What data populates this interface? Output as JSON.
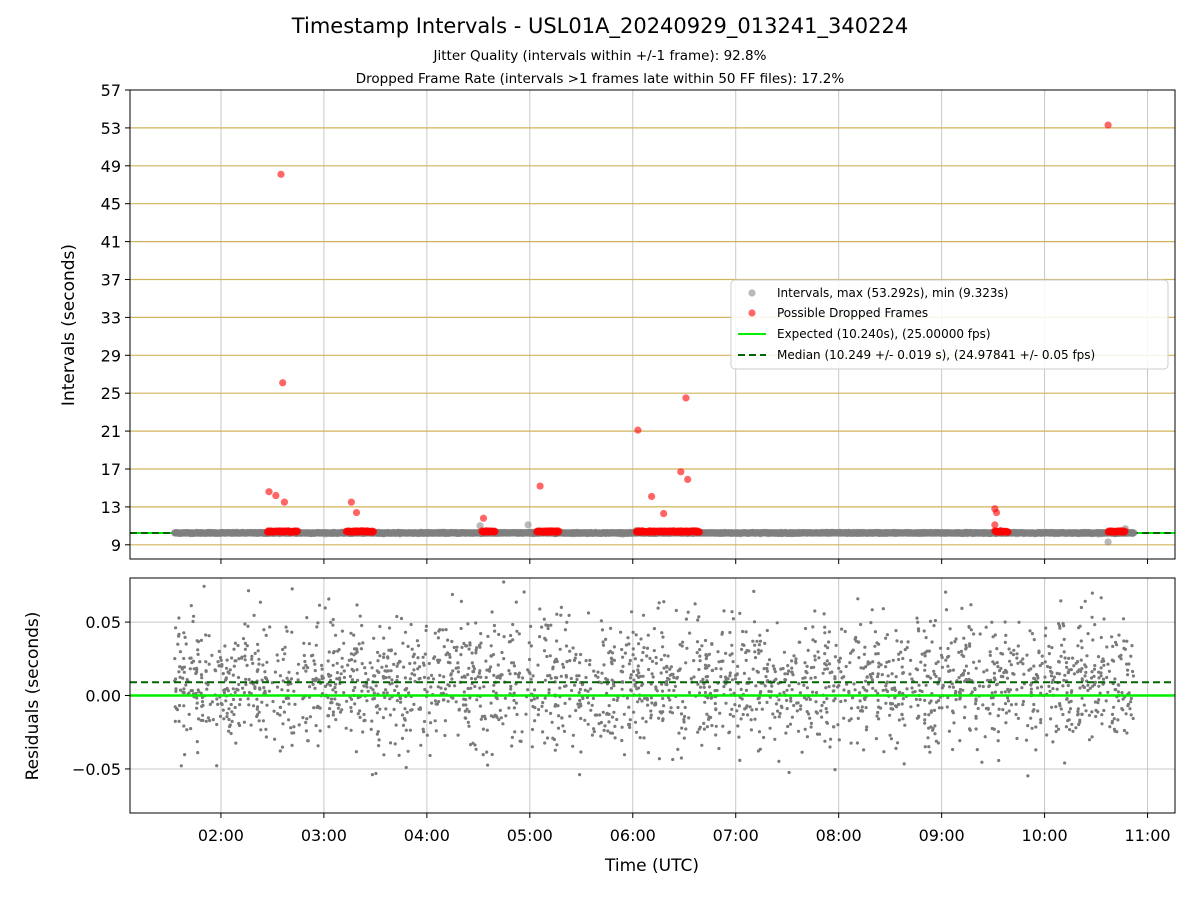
{
  "title": "Timestamp Intervals - USL01A_20240929_013241_340224",
  "subtitle_jitter": "Jitter Quality (intervals within +/-1 frame): 92.8%",
  "subtitle_dropped": "Dropped Frame Rate (intervals >1 frames late within 50 FF files): 17.2%",
  "colors": {
    "intervals": "#808080",
    "dropped": "#ff0000",
    "expected": "#00ee00",
    "median": "#006400",
    "ref_grid": "#d2b45a",
    "grid": "#c8c8c8"
  },
  "chart_data": [
    {
      "type": "scatter",
      "ylabel": "Intervals (seconds)",
      "xlim": [
        "01:07",
        "11:16"
      ],
      "ylim": [
        7.5,
        57
      ],
      "yticks": [
        9,
        13,
        17,
        21,
        25,
        29,
        33,
        37,
        41,
        45,
        49,
        53,
        57
      ],
      "horizontal_reference_lines": [
        9,
        13,
        17,
        21,
        25,
        29,
        33,
        37,
        41,
        45,
        49,
        53
      ],
      "xticks": [
        "02:00",
        "03:00",
        "04:00",
        "05:00",
        "06:00",
        "07:00",
        "08:00",
        "09:00",
        "10:00",
        "11:00"
      ],
      "series": [
        {
          "name": "Intervals, max (53.292s), min (9.323s)",
          "marker": "circle",
          "typical_value": 10.25,
          "x_range": [
            "01:33",
            "10:52"
          ],
          "points": [
            {
              "x": "04:31",
              "y": 11.0
            },
            {
              "x": "04:59",
              "y": 11.1
            },
            {
              "x": "06:02",
              "y": 10.5
            },
            {
              "x": "10:37",
              "y": 9.3
            },
            {
              "x": "10:47",
              "y": 10.7
            }
          ]
        },
        {
          "name": "Possible Dropped Frames",
          "marker": "circle",
          "points": [
            {
              "x": "02:35",
              "y": 48.1
            },
            {
              "x": "02:36",
              "y": 26.1
            },
            {
              "x": "02:28",
              "y": 14.6
            },
            {
              "x": "02:32",
              "y": 14.2
            },
            {
              "x": "02:37",
              "y": 13.5
            },
            {
              "x": "03:16",
              "y": 13.5
            },
            {
              "x": "03:19",
              "y": 12.4
            },
            {
              "x": "04:33",
              "y": 11.8
            },
            {
              "x": "05:06",
              "y": 15.2
            },
            {
              "x": "06:03",
              "y": 21.1
            },
            {
              "x": "06:11",
              "y": 14.1
            },
            {
              "x": "06:18",
              "y": 12.3
            },
            {
              "x": "06:28",
              "y": 16.7
            },
            {
              "x": "06:31",
              "y": 24.5
            },
            {
              "x": "06:32",
              "y": 15.9
            },
            {
              "x": "09:31",
              "y": 12.8
            },
            {
              "x": "09:32",
              "y": 12.4
            },
            {
              "x": "09:31",
              "y": 11.1
            },
            {
              "x": "10:37",
              "y": 53.3
            }
          ],
          "dense_clusters_at_10.4s": [
            [
              "02:27",
              "02:45"
            ],
            [
              "03:13",
              "03:29"
            ],
            [
              "04:32",
              "04:40"
            ],
            [
              "05:04",
              "05:17"
            ],
            [
              "06:02",
              "06:39"
            ],
            [
              "09:31",
              "09:39"
            ],
            [
              "10:37",
              "10:47"
            ]
          ]
        },
        {
          "name": "Expected (10.240s), (25.00000 fps)",
          "style": "solid",
          "value": 10.24
        },
        {
          "name": "Median (10.249 +/- 0.019 s), (24.97841 +/- 0.05 fps)",
          "style": "dashed",
          "value": 10.249
        }
      ],
      "legend_position": "center-right"
    },
    {
      "type": "scatter",
      "xlabel": "Time (UTC)",
      "ylabel": "Residuals (seconds)",
      "xlim": [
        "01:07",
        "11:16"
      ],
      "ylim": [
        -0.08,
        0.08
      ],
      "yticks": [
        "−0.05",
        "0.00",
        "0.05"
      ],
      "xticks": [
        "02:00",
        "03:00",
        "04:00",
        "05:00",
        "06:00",
        "07:00",
        "08:00",
        "09:00",
        "10:00",
        "11:00"
      ],
      "series": [
        {
          "name": "Residuals",
          "x_range": [
            "01:33",
            "10:52"
          ],
          "center": 0.009,
          "spread_sd": 0.022,
          "y_range": [
            -0.057,
            0.078
          ]
        },
        {
          "name": "Expected",
          "style": "solid",
          "value": 0.0
        },
        {
          "name": "Median",
          "style": "dashed",
          "value": 0.009
        }
      ],
      "grid": true
    }
  ]
}
